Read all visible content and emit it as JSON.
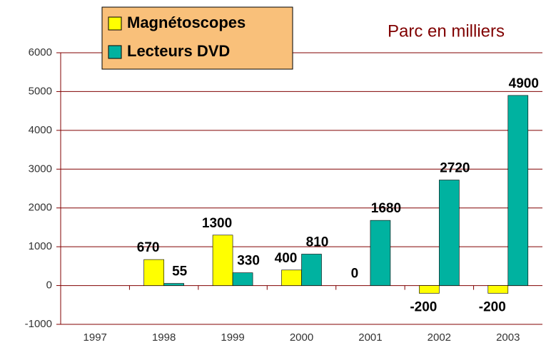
{
  "chart_data": {
    "type": "bar",
    "title": "Parc en milliers",
    "categories": [
      "1997",
      "1998",
      "1999",
      "2000",
      "2001",
      "2002",
      "2003"
    ],
    "series": [
      {
        "name": "Magnétoscopes",
        "color": "#ffff00",
        "values": [
          null,
          670,
          1300,
          400,
          0,
          -200,
          -200
        ]
      },
      {
        "name": "Lecteurs DVD",
        "color": "#00b2a0",
        "values": [
          null,
          55,
          330,
          810,
          1680,
          2720,
          4900
        ]
      }
    ],
    "ylim": [
      -1000,
      6000
    ],
    "yticks": [
      -1000,
      0,
      1000,
      2000,
      3000,
      4000,
      5000,
      6000
    ],
    "grid": true,
    "legend": "top-left"
  }
}
